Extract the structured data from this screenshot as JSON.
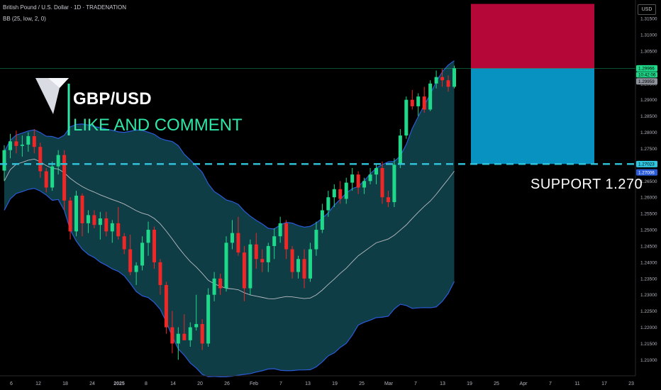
{
  "header": {
    "symbol_line": "British Pound / U.S. Dollar · 1D · TRADENATION",
    "indicator_line": "BB (25, low, 2, 0)"
  },
  "currency_label": "USD",
  "overlay": {
    "title": "GBP/USD",
    "subtitle": "LIKE AND COMMENT",
    "support_label": "SUPPORT  1.270"
  },
  "colors": {
    "background": "#000000",
    "bull": "#1fd98a",
    "bear": "#f02727",
    "band_fill": "#0f3d45",
    "band_line": "#2a5bd8",
    "basis_line": "#b8bcc4",
    "stop_zone": "#b50738",
    "target_zone": "#0892c2",
    "support_line": "#30c6e0",
    "logo_arrow": "#d9dde3",
    "logo_stroke": "#2ee6a6"
  },
  "chart_data": {
    "type": "candlestick",
    "y_axis": {
      "ylim": [
        1.2055,
        1.3207
      ],
      "ticks": [
        "1.31500",
        "1.31000",
        "1.30500",
        "1.30000",
        "1.29500",
        "1.29000",
        "1.28500",
        "1.28000",
        "1.27500",
        "1.27000",
        "1.26500",
        "1.26000",
        "1.25500",
        "1.25000",
        "1.24500",
        "1.24000",
        "1.23500",
        "1.23000",
        "1.22500",
        "1.22000",
        "1.21500",
        "1.21000"
      ]
    },
    "x_axis": {
      "tick_labels": [
        "6",
        "12",
        "18",
        "24",
        "2025",
        "8",
        "14",
        "20",
        "26",
        "Feb",
        "7",
        "13",
        "19",
        "25",
        "Mar",
        "7",
        "13",
        "19",
        "25",
        "Apr",
        "7",
        "11",
        "17",
        "23"
      ]
    },
    "price_labels": [
      {
        "text": "1.29966",
        "kind": "current-price",
        "value": 1.29966
      },
      {
        "text": "10:42:06",
        "kind": "countdown",
        "value": 1.2987
      },
      {
        "text": "1.29959",
        "kind": "marker",
        "value": 1.29959
      },
      {
        "text": "1.27023",
        "kind": "support",
        "value": 1.27023
      },
      {
        "text": "1.27006",
        "kind": "band",
        "value": 1.27006
      }
    ],
    "current_price": 1.29966,
    "support_level": 1.27023,
    "position_zones": [
      {
        "name": "stop",
        "from": 1.29959,
        "to": 1.3195
      },
      {
        "name": "target",
        "from": 1.29959,
        "to": 1.27023
      }
    ],
    "candles": [
      {
        "o": 1.2682,
        "h": 1.276,
        "l": 1.265,
        "c": 1.2745
      },
      {
        "o": 1.2745,
        "h": 1.2795,
        "l": 1.272,
        "c": 1.2772
      },
      {
        "o": 1.2772,
        "h": 1.2805,
        "l": 1.2735,
        "c": 1.2758
      },
      {
        "o": 1.2758,
        "h": 1.279,
        "l": 1.2725,
        "c": 1.2762
      },
      {
        "o": 1.2762,
        "h": 1.28,
        "l": 1.274,
        "c": 1.2788
      },
      {
        "o": 1.2788,
        "h": 1.281,
        "l": 1.2735,
        "c": 1.2755
      },
      {
        "o": 1.2755,
        "h": 1.2768,
        "l": 1.266,
        "c": 1.268
      },
      {
        "o": 1.268,
        "h": 1.269,
        "l": 1.2615,
        "c": 1.263
      },
      {
        "o": 1.263,
        "h": 1.271,
        "l": 1.262,
        "c": 1.2695
      },
      {
        "o": 1.2695,
        "h": 1.2745,
        "l": 1.267,
        "c": 1.273
      },
      {
        "o": 1.273,
        "h": 1.2745,
        "l": 1.256,
        "c": 1.259
      },
      {
        "o": 1.259,
        "h": 1.26,
        "l": 1.247,
        "c": 1.2495
      },
      {
        "o": 1.2495,
        "h": 1.262,
        "l": 1.248,
        "c": 1.2605
      },
      {
        "o": 1.2605,
        "h": 1.2612,
        "l": 1.248,
        "c": 1.252
      },
      {
        "o": 1.252,
        "h": 1.256,
        "l": 1.249,
        "c": 1.2545
      },
      {
        "o": 1.2545,
        "h": 1.256,
        "l": 1.2505,
        "c": 1.2515
      },
      {
        "o": 1.2515,
        "h": 1.2555,
        "l": 1.247,
        "c": 1.2535
      },
      {
        "o": 1.2535,
        "h": 1.2555,
        "l": 1.248,
        "c": 1.2495
      },
      {
        "o": 1.2495,
        "h": 1.253,
        "l": 1.246,
        "c": 1.252
      },
      {
        "o": 1.252,
        "h": 1.257,
        "l": 1.247,
        "c": 1.248
      },
      {
        "o": 1.248,
        "h": 1.249,
        "l": 1.2425,
        "c": 1.244
      },
      {
        "o": 1.244,
        "h": 1.2485,
        "l": 1.236,
        "c": 1.237
      },
      {
        "o": 1.237,
        "h": 1.24,
        "l": 1.233,
        "c": 1.239
      },
      {
        "o": 1.239,
        "h": 1.248,
        "l": 1.2375,
        "c": 1.246
      },
      {
        "o": 1.246,
        "h": 1.2525,
        "l": 1.242,
        "c": 1.25
      },
      {
        "o": 1.25,
        "h": 1.251,
        "l": 1.238,
        "c": 1.24
      },
      {
        "o": 1.24,
        "h": 1.241,
        "l": 1.23,
        "c": 1.233
      },
      {
        "o": 1.233,
        "h": 1.234,
        "l": 1.218,
        "c": 1.22
      },
      {
        "o": 1.22,
        "h": 1.225,
        "l": 1.212,
        "c": 1.215
      },
      {
        "o": 1.215,
        "h": 1.22,
        "l": 1.21,
        "c": 1.218
      },
      {
        "o": 1.218,
        "h": 1.224,
        "l": 1.216,
        "c": 1.216
      },
      {
        "o": 1.216,
        "h": 1.2215,
        "l": 1.214,
        "c": 1.22
      },
      {
        "o": 1.22,
        "h": 1.23,
        "l": 1.219,
        "c": 1.221
      },
      {
        "o": 1.221,
        "h": 1.2225,
        "l": 1.213,
        "c": 1.215
      },
      {
        "o": 1.215,
        "h": 1.232,
        "l": 1.214,
        "c": 1.23
      },
      {
        "o": 1.23,
        "h": 1.237,
        "l": 1.228,
        "c": 1.235
      },
      {
        "o": 1.235,
        "h": 1.2365,
        "l": 1.23,
        "c": 1.232
      },
      {
        "o": 1.232,
        "h": 1.248,
        "l": 1.231,
        "c": 1.246
      },
      {
        "o": 1.246,
        "h": 1.253,
        "l": 1.244,
        "c": 1.249
      },
      {
        "o": 1.249,
        "h": 1.254,
        "l": 1.242,
        "c": 1.243
      },
      {
        "o": 1.243,
        "h": 1.245,
        "l": 1.228,
        "c": 1.232
      },
      {
        "o": 1.232,
        "h": 1.247,
        "l": 1.23,
        "c": 1.2455
      },
      {
        "o": 1.2455,
        "h": 1.249,
        "l": 1.238,
        "c": 1.241
      },
      {
        "o": 1.241,
        "h": 1.244,
        "l": 1.237,
        "c": 1.24
      },
      {
        "o": 1.24,
        "h": 1.246,
        "l": 1.237,
        "c": 1.245
      },
      {
        "o": 1.245,
        "h": 1.2505,
        "l": 1.241,
        "c": 1.248
      },
      {
        "o": 1.248,
        "h": 1.254,
        "l": 1.246,
        "c": 1.252
      },
      {
        "o": 1.252,
        "h": 1.253,
        "l": 1.241,
        "c": 1.244
      },
      {
        "o": 1.244,
        "h": 1.245,
        "l": 1.235,
        "c": 1.237
      },
      {
        "o": 1.237,
        "h": 1.242,
        "l": 1.235,
        "c": 1.241
      },
      {
        "o": 1.241,
        "h": 1.244,
        "l": 1.232,
        "c": 1.235
      },
      {
        "o": 1.235,
        "h": 1.246,
        "l": 1.234,
        "c": 1.244
      },
      {
        "o": 1.244,
        "h": 1.2525,
        "l": 1.242,
        "c": 1.25
      },
      {
        "o": 1.25,
        "h": 1.258,
        "l": 1.249,
        "c": 1.256
      },
      {
        "o": 1.256,
        "h": 1.262,
        "l": 1.254,
        "c": 1.26
      },
      {
        "o": 1.26,
        "h": 1.264,
        "l": 1.257,
        "c": 1.2625
      },
      {
        "o": 1.2625,
        "h": 1.265,
        "l": 1.258,
        "c": 1.2595
      },
      {
        "o": 1.2595,
        "h": 1.266,
        "l": 1.258,
        "c": 1.2645
      },
      {
        "o": 1.2645,
        "h": 1.269,
        "l": 1.262,
        "c": 1.267
      },
      {
        "o": 1.267,
        "h": 1.268,
        "l": 1.261,
        "c": 1.263
      },
      {
        "o": 1.263,
        "h": 1.266,
        "l": 1.261,
        "c": 1.265
      },
      {
        "o": 1.265,
        "h": 1.269,
        "l": 1.264,
        "c": 1.267
      },
      {
        "o": 1.267,
        "h": 1.27,
        "l": 1.264,
        "c": 1.269
      },
      {
        "o": 1.269,
        "h": 1.271,
        "l": 1.258,
        "c": 1.26
      },
      {
        "o": 1.26,
        "h": 1.262,
        "l": 1.257,
        "c": 1.2585
      },
      {
        "o": 1.2585,
        "h": 1.272,
        "l": 1.257,
        "c": 1.27
      },
      {
        "o": 1.27,
        "h": 1.281,
        "l": 1.269,
        "c": 1.279
      },
      {
        "o": 1.279,
        "h": 1.291,
        "l": 1.278,
        "c": 1.29
      },
      {
        "o": 1.29,
        "h": 1.293,
        "l": 1.287,
        "c": 1.288
      },
      {
        "o": 1.288,
        "h": 1.292,
        "l": 1.285,
        "c": 1.291
      },
      {
        "o": 1.291,
        "h": 1.294,
        "l": 1.286,
        "c": 1.287
      },
      {
        "o": 1.287,
        "h": 1.296,
        "l": 1.2865,
        "c": 1.295
      },
      {
        "o": 1.295,
        "h": 1.299,
        "l": 1.2935,
        "c": 1.297
      },
      {
        "o": 1.297,
        "h": 1.2995,
        "l": 1.294,
        "c": 1.296
      },
      {
        "o": 1.296,
        "h": 1.2975,
        "l": 1.2925,
        "c": 1.294
      },
      {
        "o": 1.294,
        "h": 1.3005,
        "l": 1.2935,
        "c": 1.2997
      }
    ]
  }
}
